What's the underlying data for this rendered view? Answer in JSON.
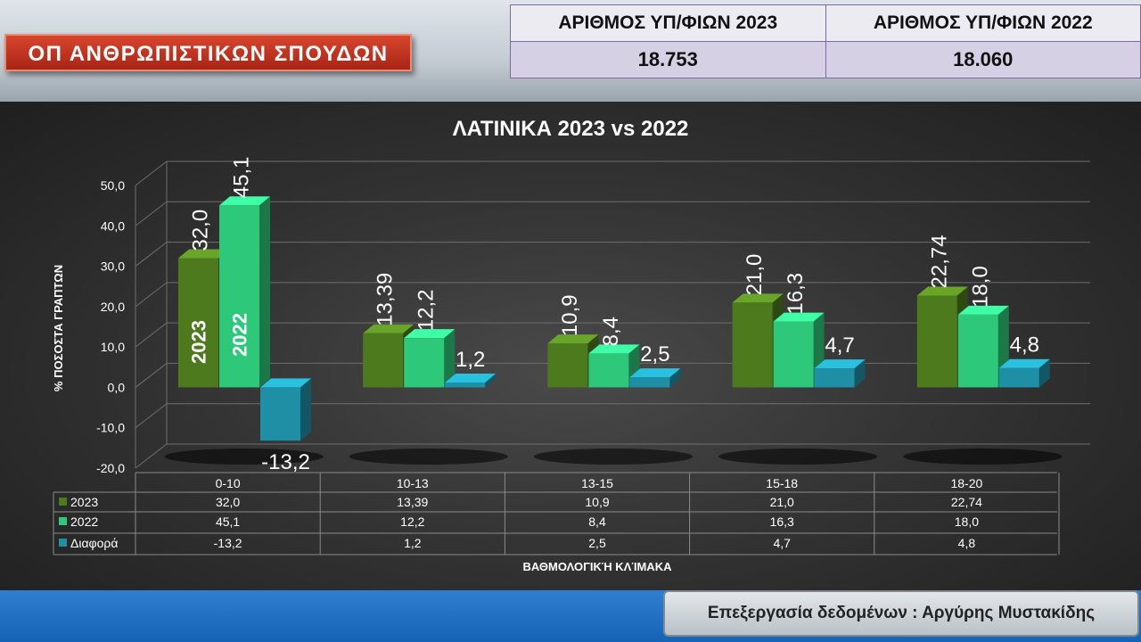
{
  "header": {
    "faculty_badge": "ΟΠ ΑΝΘΡΩΠΙΣΤΙΚΩΝ ΣΠΟΥΔΩΝ",
    "candidates_2023_label": "ΑΡΙΘΜΟΣ ΥΠ/ΦΙΩΝ 2023",
    "candidates_2022_label": "ΑΡΙΘΜΟΣ ΥΠ/ΦΙΩΝ 2022",
    "candidates_2023_value": "18.753",
    "candidates_2022_value": "18.060"
  },
  "footer": {
    "credit": "Επεξεργασία δεδομένων : Αργύρης Μυστακίδης"
  },
  "chart_data": {
    "type": "bar",
    "title": "ΛΑΤΙΝΙΚΑ  2023 vs 2022",
    "xlabel": "ΒΑΘΜΟΛΟΓΙΚΉ ΚΛΊΜΑΚΑ",
    "ylabel": "% ΠΟΣΟΣΤΑ ΓΡΑΠΤΩΝ",
    "ylim": [
      -20,
      50
    ],
    "yticks": [
      "-20,0",
      "-10,0",
      "0,0",
      "10,0",
      "20,0",
      "30,0",
      "40,0",
      "50,0"
    ],
    "grid": true,
    "categories": [
      "0-10",
      "10-13",
      "13-15",
      "15-18",
      "18-20"
    ],
    "series": [
      {
        "name": "2023",
        "values": [
          32.0,
          13.39,
          10.9,
          21.0,
          22.74
        ],
        "labels": [
          "32,0",
          "13,39",
          "10,9",
          "21,0",
          "22,74"
        ],
        "color": "#4e7a1e"
      },
      {
        "name": "2022",
        "values": [
          45.1,
          12.2,
          8.4,
          16.3,
          18.0
        ],
        "labels": [
          "45,1",
          "12,2",
          "8,4",
          "16,3",
          "18,0"
        ],
        "color": "#2ec87a"
      },
      {
        "name": "Διαφορά",
        "values": [
          -13.2,
          1.2,
          2.5,
          4.7,
          4.8
        ],
        "labels": [
          "-13,2",
          "1,2",
          "2,5",
          "4,7",
          "4,8"
        ],
        "color": "#1f8fa6"
      }
    ],
    "bar_annotations": [
      "2023",
      "2022"
    ]
  }
}
